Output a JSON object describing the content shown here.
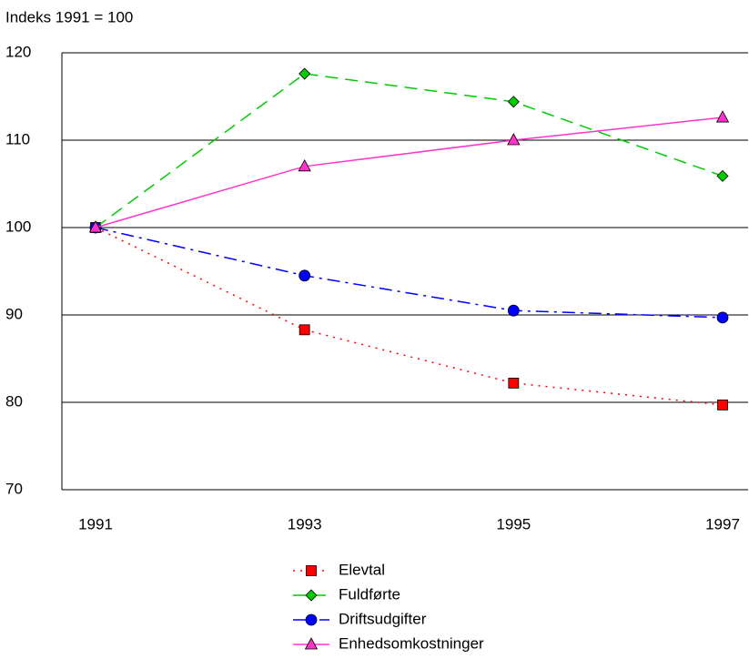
{
  "chart_data": {
    "type": "line",
    "y_label": "Indeks 1991 = 100",
    "categories": [
      "1991",
      "1993",
      "1995",
      "1997"
    ],
    "series": [
      {
        "name": "Elevtal",
        "color": "#ff0000",
        "marker": "square",
        "line_style": "dotted",
        "values": [
          100,
          88.3,
          82.2,
          79.7
        ]
      },
      {
        "name": "Fuldførte",
        "color": "#00cc00",
        "marker": "diamond",
        "line_style": "dashed",
        "values": [
          100,
          117.6,
          114.4,
          105.9
        ]
      },
      {
        "name": "Driftsudgifter",
        "color": "#0000ff",
        "marker": "circle",
        "line_style": "dashdot",
        "values": [
          100,
          94.5,
          90.5,
          89.7
        ]
      },
      {
        "name": "Enhedsomkostninger",
        "color": "#ff33cc",
        "marker": "triangle",
        "line_style": "solid",
        "values": [
          100,
          107,
          110,
          112.6
        ]
      }
    ],
    "ylim": [
      70,
      120
    ],
    "yticks": [
      70,
      80,
      90,
      100,
      110,
      120
    ],
    "grid": true,
    "legend": "bottom"
  }
}
